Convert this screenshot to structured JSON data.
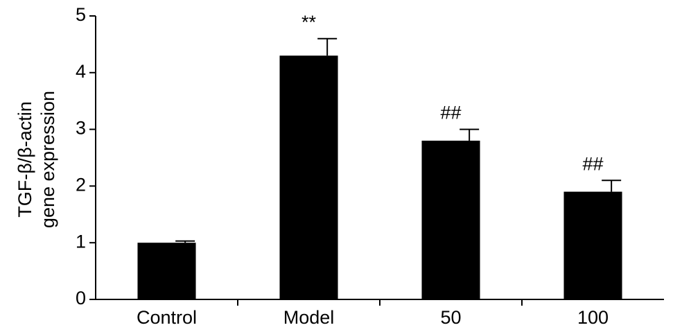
{
  "chart_data": {
    "type": "bar",
    "ylabel": [
      "TGF-β/β-actin",
      "gene expression"
    ],
    "categories": [
      "Control",
      "Model",
      "50",
      "100"
    ],
    "values": [
      1.0,
      4.3,
      2.8,
      1.9
    ],
    "errors": [
      0.03,
      0.3,
      0.2,
      0.2
    ],
    "annotations": [
      {
        "x": "Model",
        "text": "**"
      },
      {
        "x": "50",
        "text": "##"
      },
      {
        "x": "100",
        "text": "##"
      }
    ],
    "color": "#000000",
    "ylim": [
      0,
      5
    ],
    "yticks": [
      0,
      1,
      2,
      3,
      4,
      5
    ],
    "grid": false
  }
}
